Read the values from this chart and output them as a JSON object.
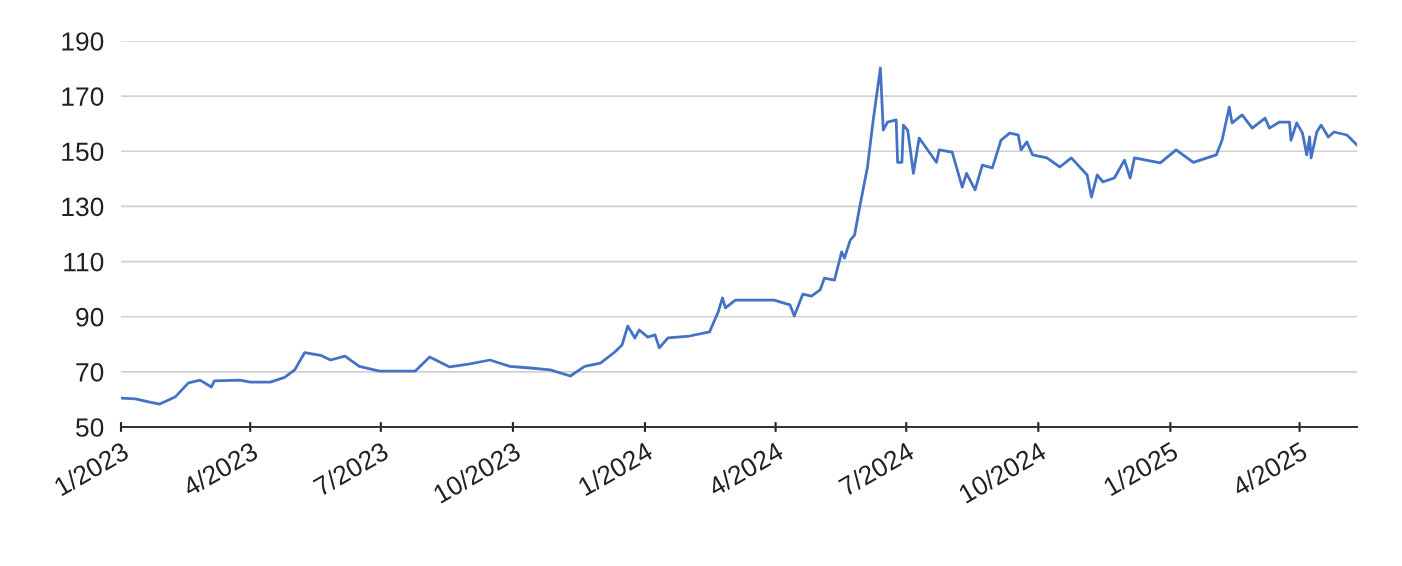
{
  "chart_data": {
    "type": "line",
    "grid": "y",
    "marker": "none",
    "line_style": "solid",
    "xlim": [
      "2023-01-01",
      "2025-05-11"
    ],
    "ylim": [
      50,
      190
    ],
    "yticks": [
      50,
      70,
      90,
      110,
      130,
      150,
      170,
      190
    ],
    "xticks": [
      {
        "value": "2023-01-01",
        "label": "1/2023"
      },
      {
        "value": "2023-04-01",
        "label": "4/2023"
      },
      {
        "value": "2023-07-01",
        "label": "7/2023"
      },
      {
        "value": "2023-10-01",
        "label": "10/2023"
      },
      {
        "value": "2024-01-01",
        "label": "1/2024"
      },
      {
        "value": "2024-04-01",
        "label": "4/2024"
      },
      {
        "value": "2024-07-01",
        "label": "7/2024"
      },
      {
        "value": "2024-10-01",
        "label": "10/2024"
      },
      {
        "value": "2025-01-01",
        "label": "1/2025"
      },
      {
        "value": "2025-04-01",
        "label": "4/2025"
      }
    ],
    "series": [
      {
        "color": "#4472c4",
        "x": [
          "2023-01-01",
          "2023-01-11",
          "2023-01-21",
          "2023-01-28",
          "2023-02-08",
          "2023-02-17",
          "2023-02-25",
          "2023-03-05",
          "2023-03-07",
          "2023-03-25",
          "2023-04-01",
          "2023-04-15",
          "2023-04-25",
          "2023-05-02",
          "2023-05-09",
          "2023-05-20",
          "2023-05-27",
          "2023-06-06",
          "2023-06-16",
          "2023-06-30",
          "2023-07-14",
          "2023-07-25",
          "2023-08-04",
          "2023-08-18",
          "2023-09-01",
          "2023-09-15",
          "2023-09-29",
          "2023-10-13",
          "2023-10-27",
          "2023-11-10",
          "2023-11-20",
          "2023-12-01",
          "2023-12-11",
          "2023-12-16",
          "2023-12-20",
          "2023-12-25",
          "2023-12-28",
          "2024-01-03",
          "2024-01-08",
          "2024-01-11",
          "2024-01-17",
          "2024-02-01",
          "2024-02-15",
          "2024-02-21",
          "2024-02-24",
          "2024-02-26",
          "2024-03-04",
          "2024-03-21",
          "2024-03-31",
          "2024-04-11",
          "2024-04-14",
          "2024-04-20",
          "2024-04-26",
          "2024-05-02",
          "2024-05-05",
          "2024-05-12",
          "2024-05-17",
          "2024-05-19",
          "2024-05-23",
          "2024-05-26",
          "2024-05-30",
          "2024-06-04",
          "2024-06-08",
          "2024-06-13",
          "2024-06-15",
          "2024-06-18",
          "2024-06-24",
          "2024-06-25",
          "2024-06-28",
          "2024-06-29",
          "2024-07-02",
          "2024-07-06",
          "2024-07-10",
          "2024-07-22",
          "2024-07-24",
          "2024-08-02",
          "2024-08-09",
          "2024-08-12",
          "2024-08-18",
          "2024-08-23",
          "2024-08-30",
          "2024-09-05",
          "2024-09-11",
          "2024-09-17",
          "2024-09-19",
          "2024-09-23",
          "2024-09-27",
          "2024-10-07",
          "2024-10-16",
          "2024-10-24",
          "2024-11-04",
          "2024-11-07",
          "2024-11-11",
          "2024-11-15",
          "2024-11-23",
          "2024-11-30",
          "2024-12-04",
          "2024-12-07",
          "2024-12-25",
          "2025-01-05",
          "2025-01-17",
          "2025-02-02",
          "2025-02-06",
          "2025-02-11",
          "2025-02-13",
          "2025-02-20",
          "2025-02-27",
          "2025-03-08",
          "2025-03-11",
          "2025-03-18",
          "2025-03-25",
          "2025-03-26",
          "2025-03-30",
          "2025-04-03",
          "2025-04-06",
          "2025-04-08",
          "2025-04-09",
          "2025-04-13",
          "2025-04-16",
          "2025-04-21",
          "2025-04-25",
          "2025-05-04",
          "2025-05-11"
        ],
        "values": [
          60.5,
          60.2,
          59,
          58.3,
          61,
          66,
          67,
          64.5,
          66.7,
          67,
          66.3,
          66.3,
          68,
          70.7,
          77,
          76,
          74.3,
          75.7,
          72,
          70.3,
          70.3,
          70.3,
          75.4,
          71.8,
          72.9,
          74.3,
          72,
          71.4,
          70.7,
          68.5,
          72,
          73.2,
          77.2,
          79.7,
          86.6,
          82.3,
          85.2,
          82.6,
          83.4,
          78.7,
          82.3,
          83,
          84.5,
          91.7,
          96.8,
          93.2,
          96,
          96,
          96,
          94.3,
          90.3,
          98.2,
          97.5,
          99.7,
          104,
          103.3,
          113.5,
          111.3,
          117.8,
          119.6,
          131,
          144.3,
          161.4,
          180.2,
          157.7,
          160.6,
          161.4,
          146,
          146,
          159.5,
          157.7,
          142,
          154.8,
          146,
          150.5,
          149.7,
          137,
          142,
          136,
          145,
          144,
          154,
          156.6,
          155.9,
          150.5,
          153.4,
          148.7,
          147.6,
          144.3,
          147.6,
          141.4,
          133.4,
          141.4,
          138.9,
          140.3,
          146.8,
          140.3,
          147.6,
          145.8,
          150.5,
          146,
          148.7,
          154,
          166,
          160.3,
          163.2,
          158.4,
          162,
          158.4,
          160.6,
          160.6,
          154,
          160.3,
          156.6,
          148.7,
          155.2,
          147.6,
          157,
          159.5,
          155.2,
          157,
          155.9,
          152.3
        ]
      }
    ]
  }
}
